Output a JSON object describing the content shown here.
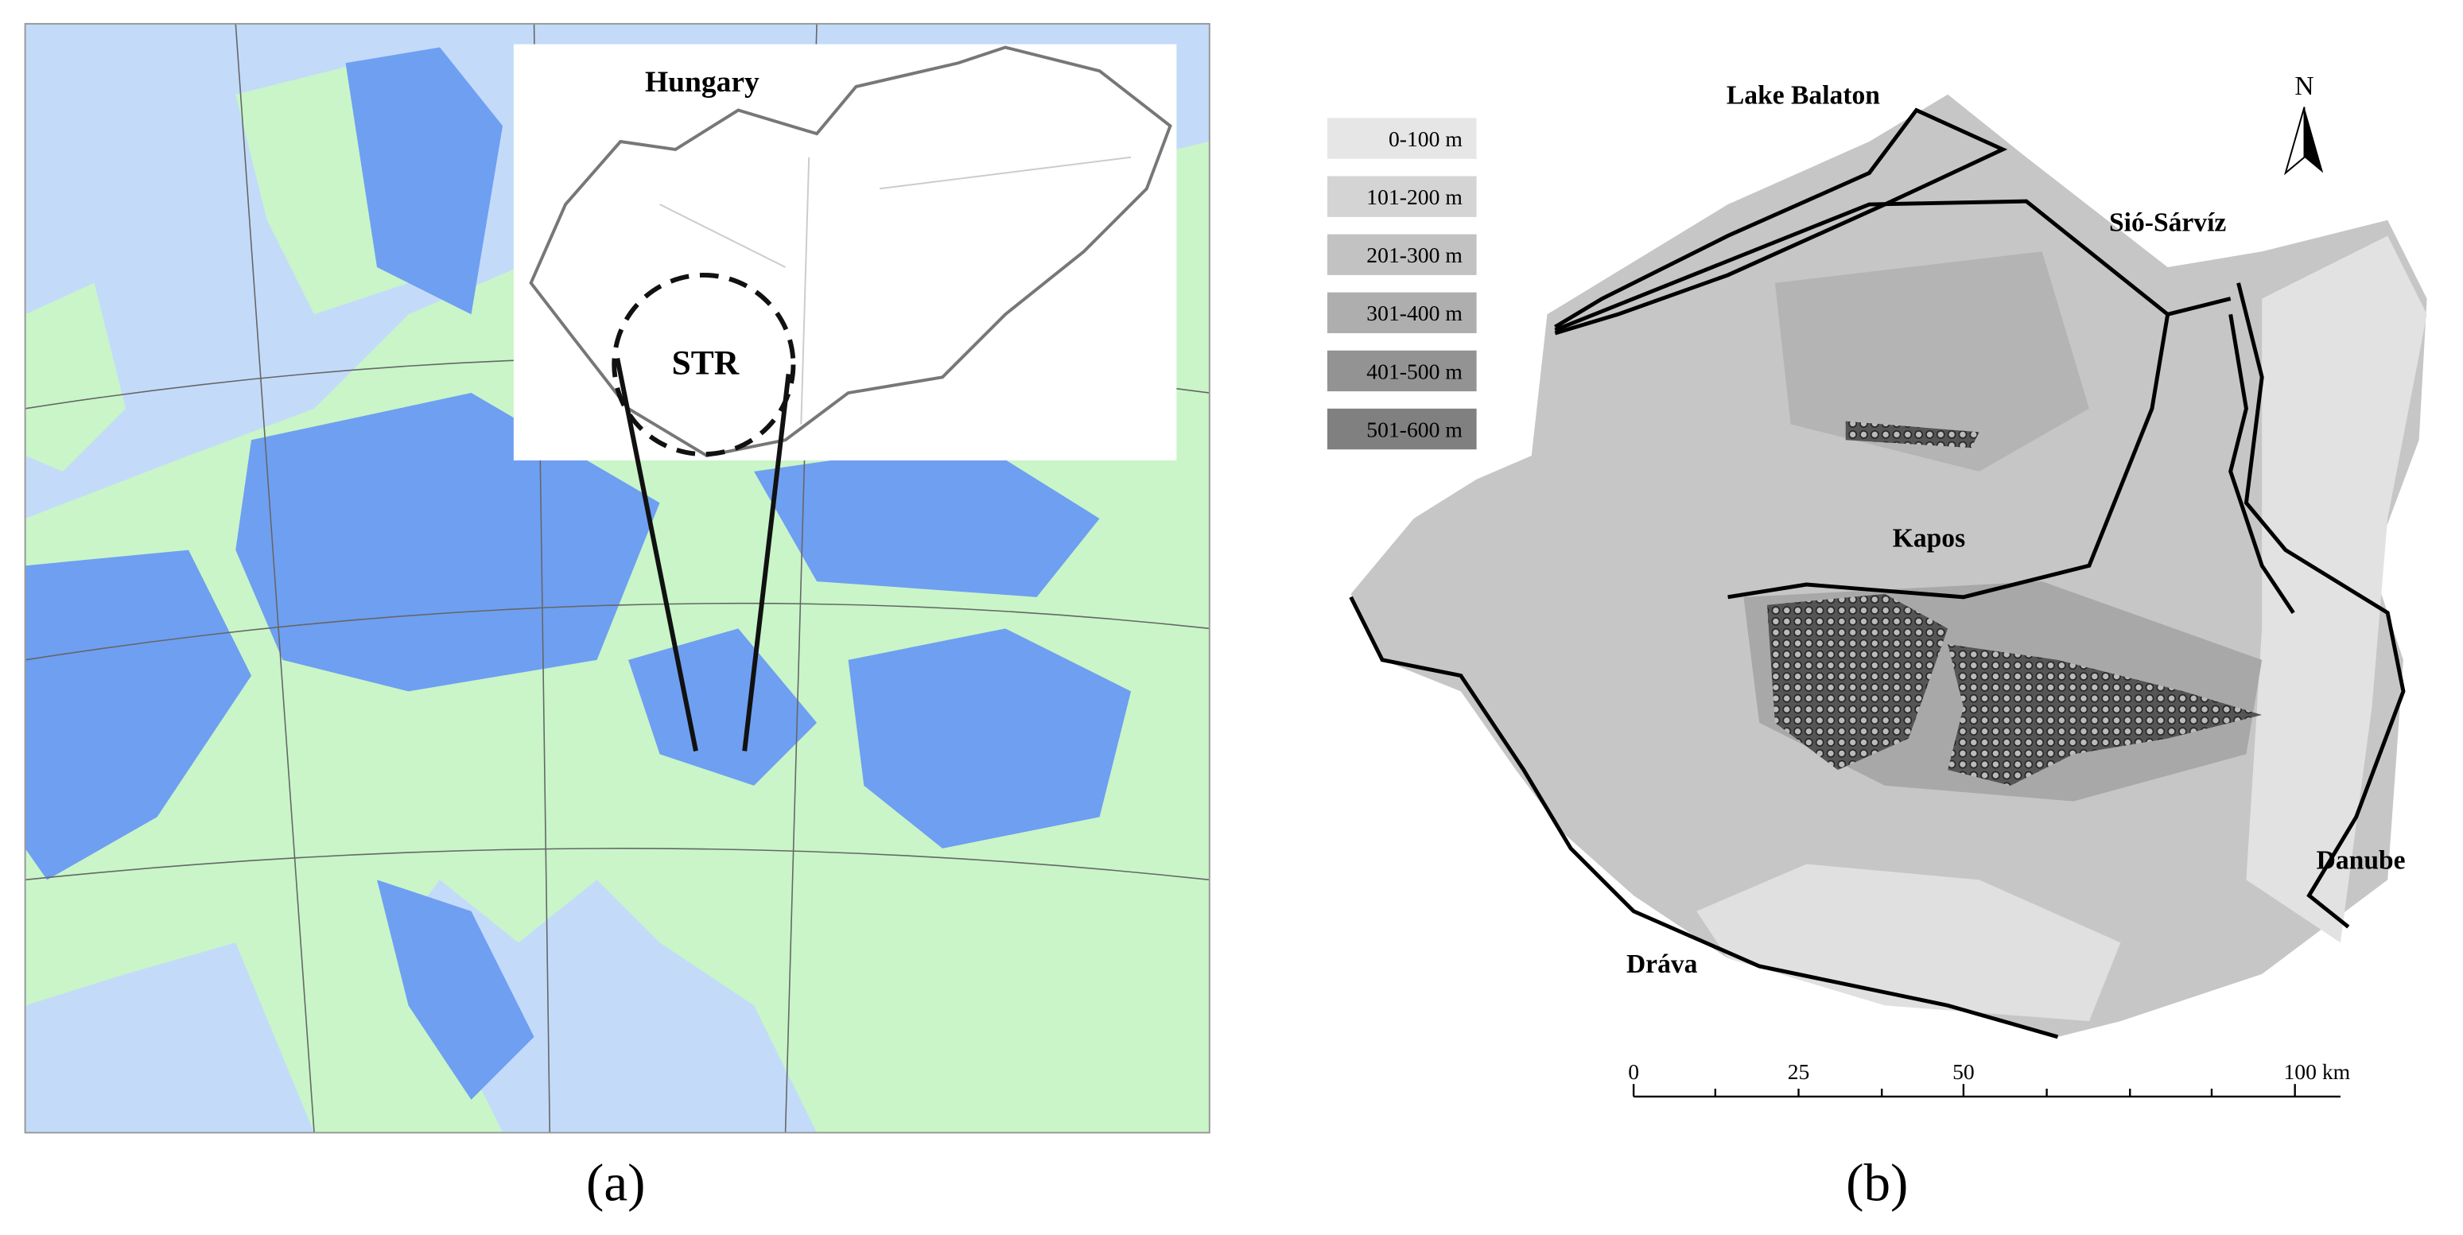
{
  "panel_a": {
    "label": "(a)",
    "inset_title": "Hungary",
    "region_label": "STR"
  },
  "panel_b": {
    "label": "(b)",
    "legend": [
      "0-100 m",
      "101-200 m",
      "201-300 m",
      "301-400 m",
      "401-500 m",
      "501-600 m"
    ],
    "places": {
      "lake": "Lake Balaton",
      "sio": "Sió-Sárvíz",
      "kapos": "Kapos",
      "danube": "Danube",
      "drava": "Dráva"
    },
    "north": "N",
    "scale_bar": [
      "0",
      "25",
      "50",
      "100 km"
    ]
  }
}
